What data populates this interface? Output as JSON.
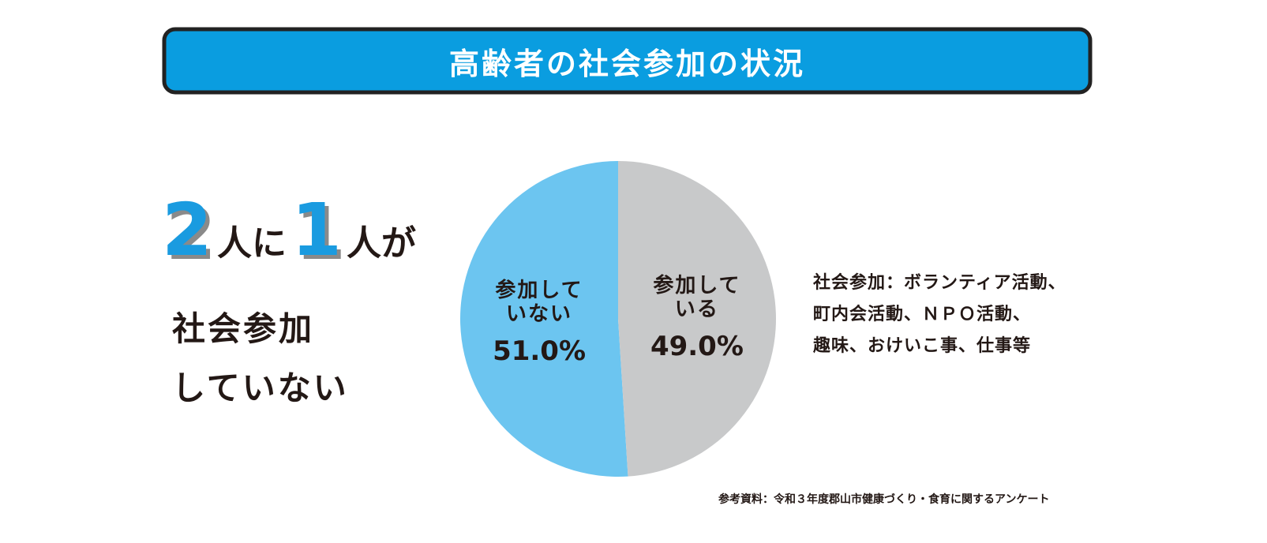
{
  "chart_data": {
    "type": "pie",
    "title": "高齢者の社会参加の状況",
    "headline": [
      "2",
      "人に",
      "1",
      "人が"
    ],
    "headline_lines": [
      "社会参加",
      "していない"
    ],
    "categories": [
      "参加していない",
      "参加している"
    ],
    "values": [
      51.0,
      49.0
    ],
    "value_labels": [
      "51.0%",
      "49.0%"
    ],
    "colors": [
      "#6cc5f0",
      "#c8c9ca"
    ],
    "note": [
      "社会参加：ボランティア活動、",
      "町内会活動、ＮＰＯ活動、",
      "趣味、おけいこ事、仕事等"
    ],
    "source": "参考資料：令和３年度郡山市健康づくり・食育に関するアンケート"
  }
}
